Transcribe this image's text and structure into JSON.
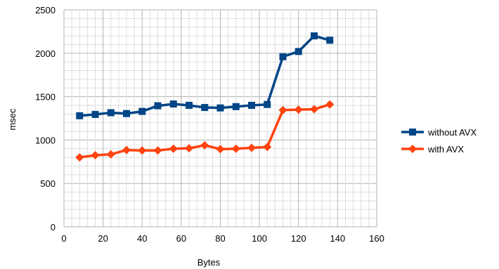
{
  "chart_data": {
    "type": "line",
    "title": "",
    "xlabel": "Bytes",
    "ylabel": "msec",
    "xlim": [
      0,
      160
    ],
    "ylim": [
      0,
      2500
    ],
    "xticks": [
      0,
      20,
      40,
      60,
      80,
      100,
      120,
      140,
      160
    ],
    "yticks": [
      0,
      500,
      1000,
      1500,
      2000,
      2500
    ],
    "grid": true,
    "legend_position": "right",
    "x": [
      8,
      16,
      24,
      32,
      40,
      48,
      56,
      64,
      72,
      80,
      88,
      96,
      104,
      112,
      120,
      128,
      136
    ],
    "series": [
      {
        "name": "without AVX",
        "color": "#004586",
        "marker": "square",
        "values": [
          1280,
          1295,
          1315,
          1305,
          1330,
          1395,
          1415,
          1400,
          1375,
          1370,
          1385,
          1400,
          1410,
          1960,
          2020,
          2200,
          2150
        ]
      },
      {
        "name": "with AVX",
        "color": "#ff420e",
        "marker": "diamond",
        "values": [
          800,
          825,
          835,
          885,
          880,
          880,
          900,
          905,
          940,
          895,
          900,
          910,
          920,
          1345,
          1350,
          1355,
          1410
        ]
      }
    ]
  }
}
